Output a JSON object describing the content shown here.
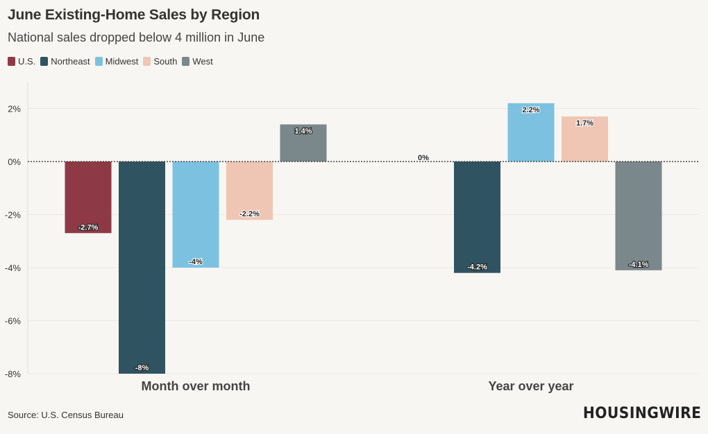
{
  "chart_data": {
    "type": "bar",
    "title": "June Existing-Home Sales by Region",
    "subtitle": "National sales dropped below 4 million in June",
    "categories": [
      "Month over month",
      "Year over year"
    ],
    "series": [
      {
        "name": "U.S.",
        "color": "#8e3a46",
        "values": [
          -2.7,
          0
        ],
        "labels": [
          "-2.7%",
          "0%"
        ]
      },
      {
        "name": "Northeast",
        "color": "#2f5361",
        "values": [
          -8,
          -4.2
        ],
        "labels": [
          "-8%",
          "-4.2%"
        ]
      },
      {
        "name": "Midwest",
        "color": "#7cc2e0",
        "values": [
          -4,
          2.2
        ],
        "labels": [
          "-4%",
          "2.2%"
        ]
      },
      {
        "name": "South",
        "color": "#eec6b3",
        "values": [
          -2.2,
          1.7
        ],
        "labels": [
          "-2.2%",
          "1.7%"
        ]
      },
      {
        "name": "West",
        "color": "#7a878b",
        "values": [
          1.4,
          -4.1
        ],
        "labels": [
          "1.4%",
          "-4.1%"
        ]
      }
    ],
    "yticks": [
      2,
      0,
      -2,
      -4,
      -6,
      -8
    ],
    "ytick_labels": [
      "2%",
      "0%",
      "-2%",
      "-4%",
      "-6%",
      "-8%"
    ],
    "ylim": [
      -8,
      3
    ],
    "xlabel": "",
    "ylabel": "",
    "grid": true,
    "legend_position": "top-left",
    "zero_line": "dotted"
  },
  "footer": {
    "source": "Source: U.S. Census Bureau",
    "logo_text": "HOUSINGWIRE"
  }
}
